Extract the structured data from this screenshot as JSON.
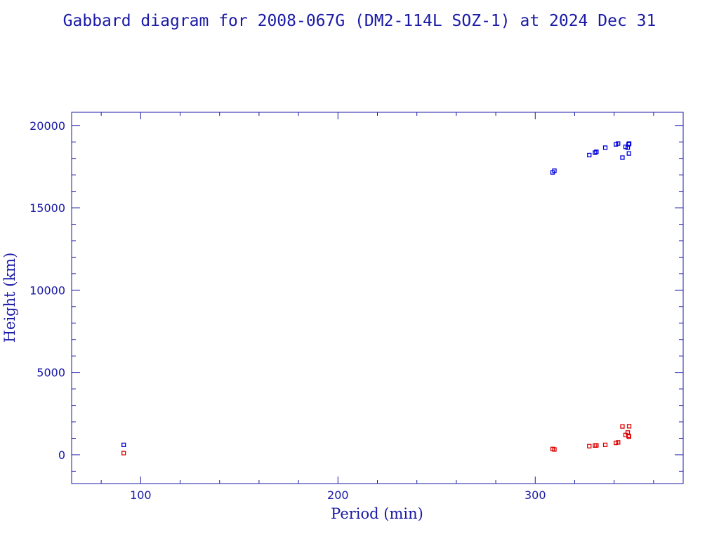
{
  "chart_data": {
    "type": "scatter",
    "title": "Gabbard diagram for 2008-067G (DM2-114L SOZ-1) at 2024 Dec 31",
    "xlabel": "Period (min)",
    "ylabel": "Height (km)",
    "xlim": [
      65,
      375
    ],
    "ylim": [
      -1750,
      20800
    ],
    "x_major_ticks": [
      100,
      200,
      300
    ],
    "x_minor_step": 20,
    "y_major_ticks": [
      0,
      5000,
      10000,
      15000,
      20000
    ],
    "y_minor_step": 1000,
    "grid": false,
    "series": [
      {
        "color": "#0000dd",
        "points": [
          [
            91.4,
            600
          ],
          [
            308.8,
            17150
          ],
          [
            309.7,
            17250
          ],
          [
            327.4,
            18200
          ],
          [
            330.3,
            18350
          ],
          [
            331.0,
            18400
          ],
          [
            335.5,
            18650
          ],
          [
            340.9,
            18850
          ],
          [
            342.0,
            18900
          ],
          [
            344.2,
            18050
          ],
          [
            345.8,
            18700
          ],
          [
            346.9,
            18650
          ],
          [
            347.3,
            18850
          ],
          [
            347.6,
            18900
          ],
          [
            347.5,
            18300
          ]
        ]
      },
      {
        "color": "#dd0000",
        "points": [
          [
            91.4,
            100
          ],
          [
            308.8,
            350
          ],
          [
            309.7,
            320
          ],
          [
            327.4,
            520
          ],
          [
            330.3,
            560
          ],
          [
            331.0,
            570
          ],
          [
            335.5,
            600
          ],
          [
            340.9,
            720
          ],
          [
            342.0,
            750
          ],
          [
            344.2,
            1720
          ],
          [
            345.8,
            1200
          ],
          [
            346.9,
            1350
          ],
          [
            347.3,
            1150
          ],
          [
            347.6,
            1730
          ],
          [
            347.5,
            1100
          ]
        ]
      }
    ]
  }
}
